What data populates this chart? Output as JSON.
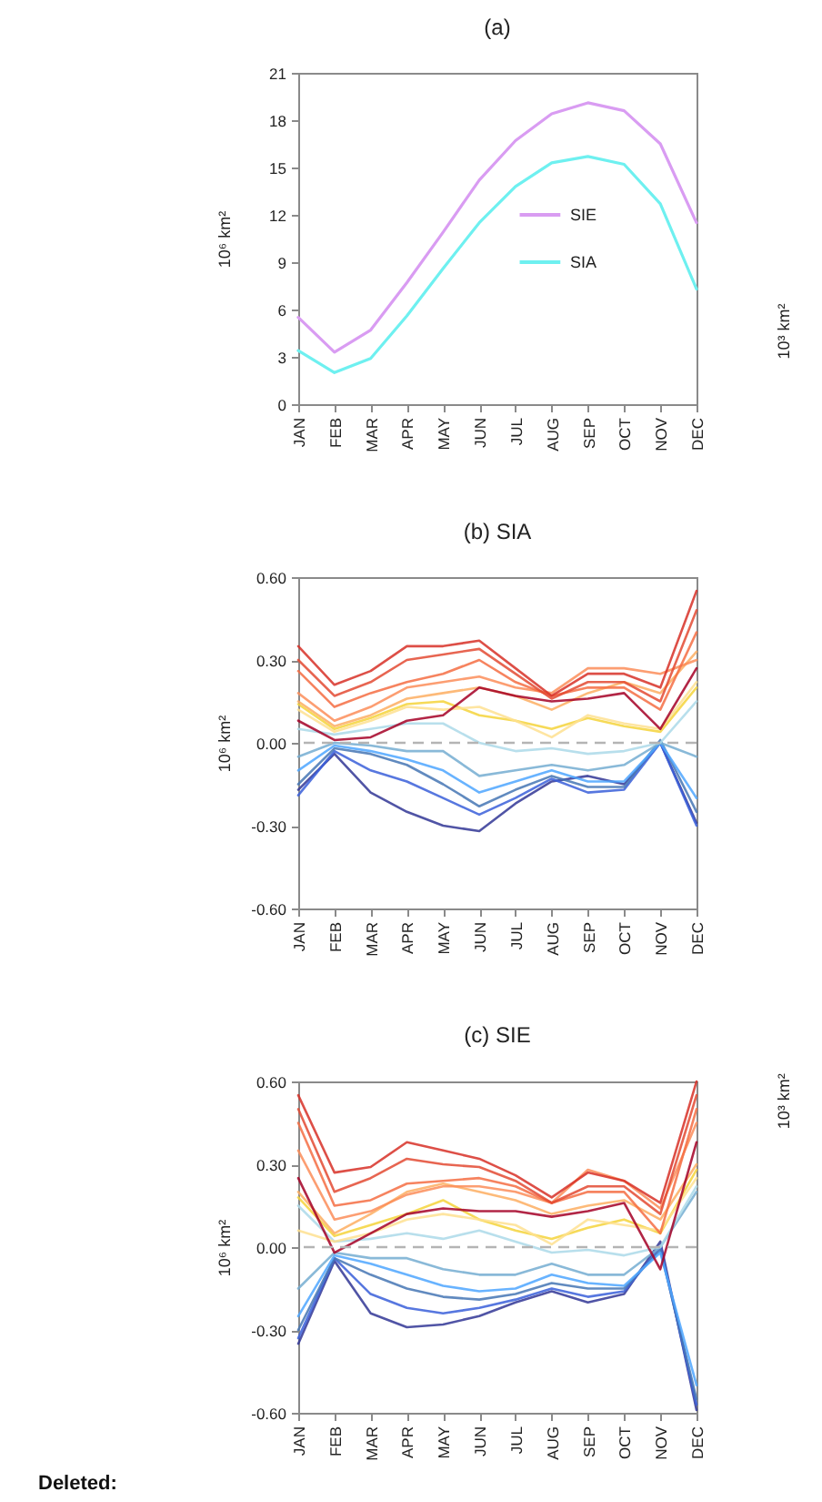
{
  "chart_data": [
    {
      "type": "line",
      "title": "(a)",
      "ylabel": "10⁶ km²",
      "y2label": "10³ km²",
      "categories": [
        "JAN",
        "FEB",
        "MAR",
        "APR",
        "MAY",
        "JUN",
        "JUL",
        "AUG",
        "SEP",
        "OCT",
        "NOV",
        "DEC"
      ],
      "series": [
        {
          "name": "SIE",
          "color": "#d99cf2",
          "values": [
            5.5,
            3.3,
            4.7,
            7.7,
            10.9,
            14.2,
            16.7,
            18.4,
            19.1,
            18.6,
            16.5,
            11.5
          ]
        },
        {
          "name": "SIA",
          "color": "#6ef0f0",
          "values": [
            3.4,
            2.0,
            2.9,
            5.6,
            8.6,
            11.5,
            13.8,
            15.3,
            15.7,
            15.2,
            12.7,
            7.3
          ]
        }
      ],
      "ylim": [
        0,
        21
      ],
      "yticks": [
        0,
        3,
        6,
        9,
        12,
        15,
        18,
        21
      ],
      "legend": "right"
    },
    {
      "type": "line",
      "title": "(b) SIA",
      "ylabel": "10⁶ km²",
      "categories": [
        "JAN",
        "FEB",
        "MAR",
        "APR",
        "MAY",
        "JUN",
        "JUL",
        "AUG",
        "SEP",
        "OCT",
        "NOV",
        "DEC"
      ],
      "series": [
        {
          "color": "#313695",
          "values": [
            -0.17,
            -0.04,
            -0.18,
            -0.25,
            -0.3,
            -0.32,
            -0.22,
            -0.14,
            -0.12,
            -0.15,
            0.0,
            -0.29
          ]
        },
        {
          "color": "#3a5fd9",
          "values": [
            -0.19,
            -0.03,
            -0.1,
            -0.14,
            -0.2,
            -0.26,
            -0.2,
            -0.13,
            -0.18,
            -0.17,
            0.0,
            -0.3
          ]
        },
        {
          "color": "#4575b4",
          "values": [
            -0.15,
            -0.02,
            -0.04,
            -0.08,
            -0.15,
            -0.23,
            -0.17,
            -0.12,
            -0.16,
            -0.16,
            0.01,
            -0.25
          ]
        },
        {
          "color": "#4da6ff",
          "values": [
            -0.1,
            -0.01,
            -0.03,
            -0.06,
            -0.1,
            -0.18,
            -0.14,
            -0.1,
            -0.14,
            -0.14,
            0.0,
            -0.2
          ]
        },
        {
          "color": "#74add1",
          "values": [
            -0.05,
            0.0,
            -0.01,
            -0.03,
            -0.03,
            -0.12,
            -0.1,
            -0.08,
            -0.1,
            -0.08,
            0.0,
            -0.05
          ]
        },
        {
          "color": "#abd9e9",
          "values": [
            0.05,
            0.03,
            0.05,
            0.07,
            0.07,
            0.0,
            -0.03,
            -0.02,
            -0.04,
            -0.03,
            0.0,
            0.15
          ]
        },
        {
          "color": "#f5d33b",
          "values": [
            0.14,
            0.05,
            0.09,
            0.14,
            0.15,
            0.1,
            0.08,
            0.05,
            0.09,
            0.06,
            0.04,
            0.2
          ]
        },
        {
          "color": "#fee090",
          "values": [
            0.12,
            0.04,
            0.08,
            0.13,
            0.12,
            0.13,
            0.08,
            0.02,
            0.1,
            0.07,
            0.05,
            0.22
          ]
        },
        {
          "color": "#fdae61",
          "values": [
            0.15,
            0.06,
            0.1,
            0.16,
            0.18,
            0.2,
            0.17,
            0.12,
            0.18,
            0.22,
            0.18,
            0.33
          ]
        },
        {
          "color": "#fc8d59",
          "values": [
            0.18,
            0.08,
            0.13,
            0.2,
            0.22,
            0.24,
            0.2,
            0.18,
            0.27,
            0.27,
            0.25,
            0.3
          ]
        },
        {
          "color": "#f46d43",
          "values": [
            0.26,
            0.13,
            0.18,
            0.22,
            0.25,
            0.3,
            0.22,
            0.17,
            0.2,
            0.2,
            0.12,
            0.4
          ]
        },
        {
          "color": "#e34a33",
          "values": [
            0.3,
            0.17,
            0.22,
            0.3,
            0.32,
            0.34,
            0.25,
            0.16,
            0.22,
            0.22,
            0.15,
            0.48
          ]
        },
        {
          "color": "#d73027",
          "values": [
            0.35,
            0.21,
            0.26,
            0.35,
            0.35,
            0.37,
            0.27,
            0.17,
            0.25,
            0.25,
            0.2,
            0.55
          ]
        },
        {
          "color": "#a50026",
          "values": [
            0.08,
            0.01,
            0.02,
            0.08,
            0.1,
            0.2,
            0.17,
            0.15,
            0.16,
            0.18,
            0.05,
            0.27
          ]
        }
      ],
      "ylim": [
        -0.6,
        0.6
      ],
      "yticks": [
        {
          "value": -0.6,
          "label": "-0.60"
        },
        {
          "value": -0.3,
          "label": "-0.30"
        },
        {
          "value": 0,
          "label": "0.00"
        },
        {
          "value": 0.3,
          "label": "0.30"
        },
        {
          "value": 0.6,
          "label": "0.60"
        }
      ],
      "ref_lines": [
        {
          "axis": "y",
          "value": 0,
          "color": "#b4b4b4",
          "line_style": "dashed"
        }
      ]
    },
    {
      "type": "line",
      "title": "(c) SIE",
      "ylabel": "10⁶ km²",
      "y2label": "10³ km²",
      "categories": [
        "JAN",
        "FEB",
        "MAR",
        "APR",
        "MAY",
        "JUN",
        "JUL",
        "AUG",
        "SEP",
        "OCT",
        "NOV",
        "DEC"
      ],
      "series": [
        {
          "color": "#313695",
          "values": [
            -0.35,
            -0.05,
            -0.24,
            -0.29,
            -0.28,
            -0.25,
            -0.2,
            -0.16,
            -0.2,
            -0.17,
            0.02,
            -0.59
          ]
        },
        {
          "color": "#3a5fd9",
          "values": [
            -0.33,
            -0.04,
            -0.17,
            -0.22,
            -0.24,
            -0.22,
            -0.19,
            -0.15,
            -0.18,
            -0.16,
            0.0,
            -0.57
          ]
        },
        {
          "color": "#4575b4",
          "values": [
            -0.3,
            -0.04,
            -0.1,
            -0.15,
            -0.18,
            -0.19,
            -0.17,
            -0.13,
            -0.15,
            -0.15,
            -0.01,
            -0.55
          ]
        },
        {
          "color": "#4da6ff",
          "values": [
            -0.25,
            -0.03,
            -0.06,
            -0.1,
            -0.14,
            -0.16,
            -0.15,
            -0.1,
            -0.13,
            -0.14,
            -0.02,
            -0.5
          ]
        },
        {
          "color": "#74add1",
          "values": [
            -0.15,
            -0.02,
            -0.04,
            -0.04,
            -0.08,
            -0.1,
            -0.1,
            -0.06,
            -0.1,
            -0.1,
            0.0,
            0.2
          ]
        },
        {
          "color": "#abd9e9",
          "values": [
            0.15,
            0.02,
            0.03,
            0.05,
            0.03,
            0.06,
            0.02,
            -0.02,
            -0.01,
            -0.03,
            0.0,
            0.22
          ]
        },
        {
          "color": "#f5d33b",
          "values": [
            0.18,
            0.04,
            0.08,
            0.12,
            0.17,
            0.1,
            0.06,
            0.03,
            0.07,
            0.1,
            0.05,
            0.28
          ]
        },
        {
          "color": "#fee090",
          "values": [
            0.06,
            0.02,
            0.05,
            0.1,
            0.12,
            0.1,
            0.08,
            0.01,
            0.1,
            0.08,
            0.06,
            0.25
          ]
        },
        {
          "color": "#fdae61",
          "values": [
            0.2,
            0.05,
            0.12,
            0.2,
            0.23,
            0.2,
            0.17,
            0.12,
            0.15,
            0.17,
            0.1,
            0.3
          ]
        },
        {
          "color": "#fc8d59",
          "values": [
            0.35,
            0.1,
            0.13,
            0.19,
            0.22,
            0.22,
            0.2,
            0.16,
            0.28,
            0.24,
            0.14,
            0.45
          ]
        },
        {
          "color": "#f46d43",
          "values": [
            0.45,
            0.15,
            0.17,
            0.23,
            0.24,
            0.25,
            0.22,
            0.16,
            0.2,
            0.2,
            0.05,
            0.5
          ]
        },
        {
          "color": "#e34a33",
          "values": [
            0.5,
            0.2,
            0.25,
            0.32,
            0.3,
            0.29,
            0.24,
            0.16,
            0.22,
            0.22,
            0.12,
            0.55
          ]
        },
        {
          "color": "#d73027",
          "values": [
            0.55,
            0.27,
            0.29,
            0.38,
            0.35,
            0.32,
            0.26,
            0.18,
            0.27,
            0.24,
            0.16,
            0.6
          ]
        },
        {
          "color": "#a50026",
          "values": [
            0.25,
            -0.02,
            0.05,
            0.12,
            0.14,
            0.13,
            0.13,
            0.11,
            0.13,
            0.16,
            -0.08,
            0.38
          ]
        }
      ],
      "ylim": [
        -0.6,
        0.6
      ],
      "yticks": [
        {
          "value": -0.6,
          "label": "-0.60"
        },
        {
          "value": -0.3,
          "label": "-0.30"
        },
        {
          "value": 0,
          "label": "0.00"
        },
        {
          "value": 0.3,
          "label": "0.30"
        },
        {
          "value": 0.6,
          "label": "0.60"
        }
      ],
      "ref_lines": [
        {
          "axis": "y",
          "value": 0,
          "color": "#b4b4b4",
          "line_style": "dashed"
        }
      ],
      "annotations": [
        "Deleted:"
      ]
    }
  ]
}
